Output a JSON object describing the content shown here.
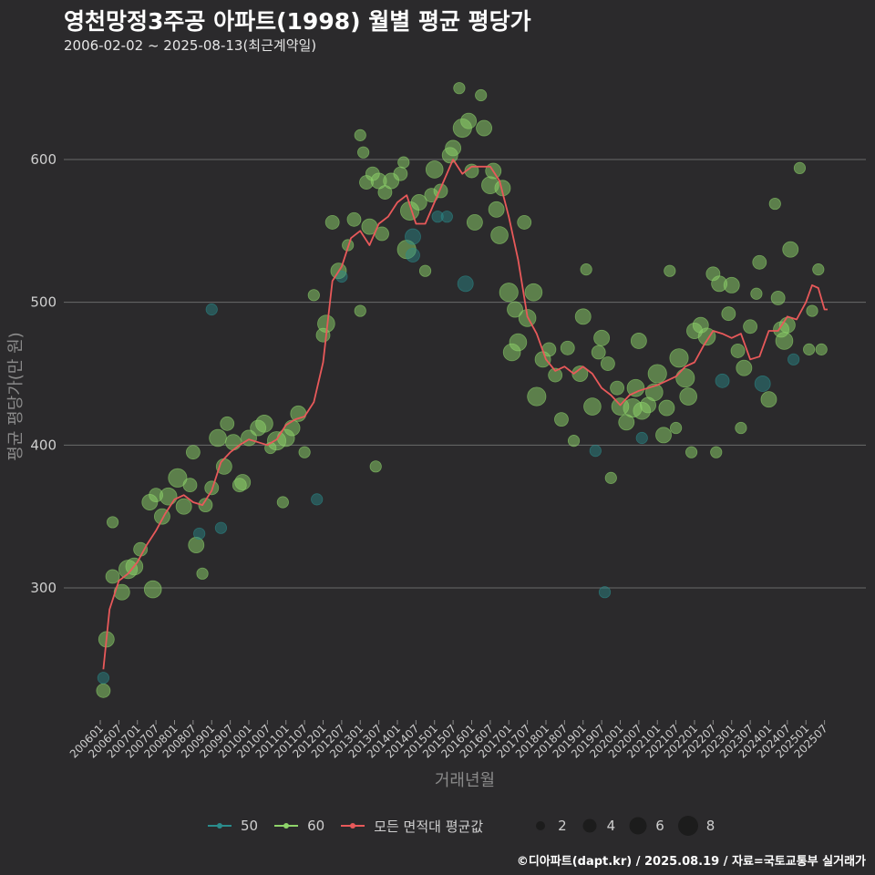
{
  "chart_data": {
    "type": "scatter",
    "title": "영천망정3주공 아파트(1998) 월별 평균 평당가",
    "subtitle": "2006-02-02 ~ 2025-08-13(최근계약일)",
    "xlabel": "거래년월",
    "ylabel": "평균 평당가(만 원)",
    "ylim": [
      205,
      660
    ],
    "yticks": [
      300,
      400,
      500,
      600
    ],
    "grid": "horizontal",
    "legend_placement": "bottom",
    "x_start": "2006-01",
    "x_end": "2025-08",
    "xticks": [
      "200601",
      "200607",
      "200701",
      "200707",
      "200801",
      "200807",
      "200901",
      "200907",
      "201001",
      "201007",
      "201101",
      "201107",
      "201201",
      "201207",
      "201301",
      "201307",
      "201401",
      "201407",
      "201501",
      "201507",
      "201601",
      "201607",
      "201701",
      "201707",
      "201801",
      "201807",
      "201901",
      "201907",
      "202001",
      "202007",
      "202101",
      "202107",
      "202201",
      "202207",
      "202301",
      "202307",
      "202401",
      "202407",
      "202501",
      "202507"
    ],
    "series": [
      {
        "name": "50",
        "kind": "points",
        "color": "#2a8c8c"
      },
      {
        "name": "60",
        "kind": "points",
        "color": "#8ed46a"
      },
      {
        "name": "모든 면적대 평균값",
        "kind": "line",
        "color": "#e8595a"
      }
    ],
    "size_legend": [
      2,
      4,
      6,
      8
    ],
    "average_line": {
      "x": [
        "2006-02",
        "2006-04",
        "2006-07",
        "2006-10",
        "2007-01",
        "2007-04",
        "2007-07",
        "2007-10",
        "2008-01",
        "2008-04",
        "2008-07",
        "2008-10",
        "2009-01",
        "2009-04",
        "2009-07",
        "2009-10",
        "2010-01",
        "2010-04",
        "2010-07",
        "2010-10",
        "2011-01",
        "2011-04",
        "2011-07",
        "2011-10",
        "2012-01",
        "2012-04",
        "2012-07",
        "2012-10",
        "2013-01",
        "2013-04",
        "2013-07",
        "2013-10",
        "2014-01",
        "2014-04",
        "2014-07",
        "2014-10",
        "2015-01",
        "2015-04",
        "2015-07",
        "2015-10",
        "2016-01",
        "2016-04",
        "2016-07",
        "2016-10",
        "2017-01",
        "2017-04",
        "2017-07",
        "2017-10",
        "2018-01",
        "2018-04",
        "2018-07",
        "2018-10",
        "2019-01",
        "2019-04",
        "2019-07",
        "2019-10",
        "2020-01",
        "2020-04",
        "2020-07",
        "2020-10",
        "2021-01",
        "2021-04",
        "2021-07",
        "2021-10",
        "2022-01",
        "2022-04",
        "2022-07",
        "2022-10",
        "2023-01",
        "2023-04",
        "2023-07",
        "2023-10",
        "2024-01",
        "2024-04",
        "2024-07",
        "2024-10",
        "2025-01",
        "2025-03",
        "2025-05",
        "2025-07",
        "2025-08"
      ],
      "y": [
        243,
        285,
        305,
        310,
        318,
        330,
        340,
        352,
        362,
        365,
        360,
        358,
        368,
        388,
        395,
        400,
        404,
        402,
        400,
        404,
        414,
        418,
        420,
        430,
        458,
        515,
        525,
        545,
        550,
        540,
        555,
        560,
        570,
        575,
        555,
        555,
        570,
        585,
        600,
        590,
        595,
        595,
        595,
        585,
        560,
        530,
        490,
        478,
        460,
        452,
        455,
        450,
        455,
        450,
        440,
        435,
        428,
        435,
        438,
        440,
        442,
        445,
        448,
        455,
        458,
        470,
        480,
        478,
        475,
        478,
        460,
        462,
        480,
        480,
        490,
        488,
        500,
        512,
        510,
        495,
        495
      ]
    },
    "points": [
      {
        "x": "2006-02",
        "y": 228,
        "n": 2,
        "s": "60"
      },
      {
        "x": "2006-02",
        "y": 237,
        "n": 1,
        "s": "50"
      },
      {
        "x": "2006-03",
        "y": 264,
        "n": 3,
        "s": "60"
      },
      {
        "x": "2006-05",
        "y": 308,
        "n": 2,
        "s": "60"
      },
      {
        "x": "2006-05",
        "y": 346,
        "n": 1,
        "s": "60"
      },
      {
        "x": "2006-08",
        "y": 297,
        "n": 3,
        "s": "60"
      },
      {
        "x": "2006-10",
        "y": 313,
        "n": 5,
        "s": "60"
      },
      {
        "x": "2006-12",
        "y": 315,
        "n": 4,
        "s": "60"
      },
      {
        "x": "2007-02",
        "y": 327,
        "n": 2,
        "s": "60"
      },
      {
        "x": "2007-05",
        "y": 360,
        "n": 3,
        "s": "60"
      },
      {
        "x": "2007-06",
        "y": 299,
        "n": 4,
        "s": "60"
      },
      {
        "x": "2007-07",
        "y": 365,
        "n": 2,
        "s": "60"
      },
      {
        "x": "2007-09",
        "y": 350,
        "n": 3,
        "s": "60"
      },
      {
        "x": "2007-11",
        "y": 364,
        "n": 4,
        "s": "60"
      },
      {
        "x": "2008-02",
        "y": 377,
        "n": 5,
        "s": "60"
      },
      {
        "x": "2008-04",
        "y": 357,
        "n": 3,
        "s": "60"
      },
      {
        "x": "2008-06",
        "y": 372,
        "n": 2,
        "s": "60"
      },
      {
        "x": "2008-07",
        "y": 395,
        "n": 2,
        "s": "60"
      },
      {
        "x": "2008-08",
        "y": 330,
        "n": 3,
        "s": "60"
      },
      {
        "x": "2008-09",
        "y": 338,
        "n": 1,
        "s": "50"
      },
      {
        "x": "2008-10",
        "y": 310,
        "n": 1,
        "s": "60"
      },
      {
        "x": "2008-11",
        "y": 358,
        "n": 2,
        "s": "60"
      },
      {
        "x": "2009-01",
        "y": 495,
        "n": 1,
        "s": "50"
      },
      {
        "x": "2009-01",
        "y": 370,
        "n": 2,
        "s": "60"
      },
      {
        "x": "2009-03",
        "y": 405,
        "n": 4,
        "s": "60"
      },
      {
        "x": "2009-04",
        "y": 342,
        "n": 1,
        "s": "50"
      },
      {
        "x": "2009-05",
        "y": 385,
        "n": 3,
        "s": "60"
      },
      {
        "x": "2009-06",
        "y": 415,
        "n": 2,
        "s": "60"
      },
      {
        "x": "2009-08",
        "y": 402,
        "n": 3,
        "s": "60"
      },
      {
        "x": "2009-10",
        "y": 372,
        "n": 2,
        "s": "60"
      },
      {
        "x": "2009-11",
        "y": 374,
        "n": 3,
        "s": "60"
      },
      {
        "x": "2010-01",
        "y": 405,
        "n": 3,
        "s": "60"
      },
      {
        "x": "2010-04",
        "y": 412,
        "n": 3,
        "s": "60"
      },
      {
        "x": "2010-06",
        "y": 415,
        "n": 4,
        "s": "60"
      },
      {
        "x": "2010-08",
        "y": 398,
        "n": 1,
        "s": "60"
      },
      {
        "x": "2010-10",
        "y": 403,
        "n": 5,
        "s": "60"
      },
      {
        "x": "2010-12",
        "y": 360,
        "n": 1,
        "s": "60"
      },
      {
        "x": "2011-01",
        "y": 405,
        "n": 4,
        "s": "60"
      },
      {
        "x": "2011-03",
        "y": 412,
        "n": 3,
        "s": "60"
      },
      {
        "x": "2011-05",
        "y": 422,
        "n": 3,
        "s": "60"
      },
      {
        "x": "2011-07",
        "y": 395,
        "n": 1,
        "s": "60"
      },
      {
        "x": "2011-10",
        "y": 505,
        "n": 1,
        "s": "60"
      },
      {
        "x": "2011-11",
        "y": 362,
        "n": 1,
        "s": "50"
      },
      {
        "x": "2012-01",
        "y": 477,
        "n": 2,
        "s": "60"
      },
      {
        "x": "2012-02",
        "y": 485,
        "n": 4,
        "s": "60"
      },
      {
        "x": "2012-04",
        "y": 556,
        "n": 2,
        "s": "60"
      },
      {
        "x": "2012-06",
        "y": 522,
        "n": 3,
        "s": "60"
      },
      {
        "x": "2012-07",
        "y": 518,
        "n": 1,
        "s": "50"
      },
      {
        "x": "2012-09",
        "y": 540,
        "n": 1,
        "s": "60"
      },
      {
        "x": "2012-11",
        "y": 558,
        "n": 2,
        "s": "60"
      },
      {
        "x": "2013-01",
        "y": 617,
        "n": 1,
        "s": "60"
      },
      {
        "x": "2013-01",
        "y": 494,
        "n": 1,
        "s": "60"
      },
      {
        "x": "2013-02",
        "y": 605,
        "n": 1,
        "s": "60"
      },
      {
        "x": "2013-03",
        "y": 584,
        "n": 2,
        "s": "60"
      },
      {
        "x": "2013-04",
        "y": 553,
        "n": 3,
        "s": "60"
      },
      {
        "x": "2013-05",
        "y": 590,
        "n": 2,
        "s": "60"
      },
      {
        "x": "2013-06",
        "y": 385,
        "n": 1,
        "s": "60"
      },
      {
        "x": "2013-07",
        "y": 585,
        "n": 3,
        "s": "60"
      },
      {
        "x": "2013-08",
        "y": 548,
        "n": 2,
        "s": "60"
      },
      {
        "x": "2013-09",
        "y": 577,
        "n": 2,
        "s": "60"
      },
      {
        "x": "2013-11",
        "y": 585,
        "n": 3,
        "s": "60"
      },
      {
        "x": "2014-02",
        "y": 590,
        "n": 2,
        "s": "60"
      },
      {
        "x": "2014-03",
        "y": 598,
        "n": 1,
        "s": "60"
      },
      {
        "x": "2014-04",
        "y": 537,
        "n": 5,
        "s": "60"
      },
      {
        "x": "2014-05",
        "y": 564,
        "n": 5,
        "s": "60"
      },
      {
        "x": "2014-06",
        "y": 546,
        "n": 3,
        "s": "50"
      },
      {
        "x": "2014-06",
        "y": 533,
        "n": 2,
        "s": "50"
      },
      {
        "x": "2014-08",
        "y": 570,
        "n": 3,
        "s": "60"
      },
      {
        "x": "2014-10",
        "y": 522,
        "n": 1,
        "s": "60"
      },
      {
        "x": "2014-12",
        "y": 575,
        "n": 2,
        "s": "60"
      },
      {
        "x": "2015-01",
        "y": 593,
        "n": 4,
        "s": "60"
      },
      {
        "x": "2015-02",
        "y": 560,
        "n": 1,
        "s": "50"
      },
      {
        "x": "2015-03",
        "y": 578,
        "n": 2,
        "s": "60"
      },
      {
        "x": "2015-05",
        "y": 560,
        "n": 1,
        "s": "50"
      },
      {
        "x": "2015-06",
        "y": 603,
        "n": 3,
        "s": "60"
      },
      {
        "x": "2015-07",
        "y": 608,
        "n": 3,
        "s": "60"
      },
      {
        "x": "2015-09",
        "y": 650,
        "n": 1,
        "s": "60"
      },
      {
        "x": "2015-10",
        "y": 622,
        "n": 5,
        "s": "60"
      },
      {
        "x": "2015-11",
        "y": 513,
        "n": 3,
        "s": "50"
      },
      {
        "x": "2015-12",
        "y": 627,
        "n": 3,
        "s": "60"
      },
      {
        "x": "2016-01",
        "y": 592,
        "n": 2,
        "s": "60"
      },
      {
        "x": "2016-02",
        "y": 556,
        "n": 3,
        "s": "60"
      },
      {
        "x": "2016-04",
        "y": 645,
        "n": 1,
        "s": "60"
      },
      {
        "x": "2016-05",
        "y": 622,
        "n": 3,
        "s": "60"
      },
      {
        "x": "2016-07",
        "y": 582,
        "n": 4,
        "s": "60"
      },
      {
        "x": "2016-08",
        "y": 592,
        "n": 3,
        "s": "60"
      },
      {
        "x": "2016-09",
        "y": 565,
        "n": 3,
        "s": "60"
      },
      {
        "x": "2016-10",
        "y": 547,
        "n": 4,
        "s": "60"
      },
      {
        "x": "2016-11",
        "y": 580,
        "n": 3,
        "s": "60"
      },
      {
        "x": "2017-01",
        "y": 507,
        "n": 5,
        "s": "60"
      },
      {
        "x": "2017-02",
        "y": 465,
        "n": 4,
        "s": "60"
      },
      {
        "x": "2017-03",
        "y": 495,
        "n": 3,
        "s": "60"
      },
      {
        "x": "2017-04",
        "y": 472,
        "n": 4,
        "s": "60"
      },
      {
        "x": "2017-06",
        "y": 556,
        "n": 2,
        "s": "60"
      },
      {
        "x": "2017-07",
        "y": 489,
        "n": 4,
        "s": "60"
      },
      {
        "x": "2017-09",
        "y": 507,
        "n": 4,
        "s": "60"
      },
      {
        "x": "2017-10",
        "y": 434,
        "n": 5,
        "s": "60"
      },
      {
        "x": "2017-12",
        "y": 460,
        "n": 3,
        "s": "60"
      },
      {
        "x": "2018-02",
        "y": 467,
        "n": 2,
        "s": "60"
      },
      {
        "x": "2018-04",
        "y": 449,
        "n": 2,
        "s": "60"
      },
      {
        "x": "2018-06",
        "y": 418,
        "n": 2,
        "s": "60"
      },
      {
        "x": "2018-08",
        "y": 468,
        "n": 2,
        "s": "60"
      },
      {
        "x": "2018-10",
        "y": 403,
        "n": 1,
        "s": "60"
      },
      {
        "x": "2018-12",
        "y": 450,
        "n": 3,
        "s": "60"
      },
      {
        "x": "2019-01",
        "y": 490,
        "n": 3,
        "s": "60"
      },
      {
        "x": "2019-02",
        "y": 523,
        "n": 1,
        "s": "60"
      },
      {
        "x": "2019-04",
        "y": 427,
        "n": 4,
        "s": "60"
      },
      {
        "x": "2019-05",
        "y": 396,
        "n": 1,
        "s": "50"
      },
      {
        "x": "2019-06",
        "y": 465,
        "n": 2,
        "s": "60"
      },
      {
        "x": "2019-07",
        "y": 475,
        "n": 3,
        "s": "60"
      },
      {
        "x": "2019-08",
        "y": 297,
        "n": 1,
        "s": "50"
      },
      {
        "x": "2019-09",
        "y": 457,
        "n": 2,
        "s": "60"
      },
      {
        "x": "2019-10",
        "y": 377,
        "n": 1,
        "s": "60"
      },
      {
        "x": "2019-12",
        "y": 440,
        "n": 2,
        "s": "60"
      },
      {
        "x": "2020-01",
        "y": 427,
        "n": 4,
        "s": "60"
      },
      {
        "x": "2020-03",
        "y": 416,
        "n": 3,
        "s": "60"
      },
      {
        "x": "2020-05",
        "y": 426,
        "n": 5,
        "s": "60"
      },
      {
        "x": "2020-06",
        "y": 440,
        "n": 4,
        "s": "60"
      },
      {
        "x": "2020-07",
        "y": 473,
        "n": 3,
        "s": "60"
      },
      {
        "x": "2020-08",
        "y": 424,
        "n": 4,
        "s": "60"
      },
      {
        "x": "2020-08",
        "y": 405,
        "n": 1,
        "s": "50"
      },
      {
        "x": "2020-10",
        "y": 428,
        "n": 3,
        "s": "60"
      },
      {
        "x": "2020-12",
        "y": 437,
        "n": 4,
        "s": "60"
      },
      {
        "x": "2021-01",
        "y": 450,
        "n": 5,
        "s": "60"
      },
      {
        "x": "2021-03",
        "y": 407,
        "n": 3,
        "s": "60"
      },
      {
        "x": "2021-04",
        "y": 426,
        "n": 3,
        "s": "60"
      },
      {
        "x": "2021-05",
        "y": 522,
        "n": 1,
        "s": "60"
      },
      {
        "x": "2021-07",
        "y": 412,
        "n": 1,
        "s": "60"
      },
      {
        "x": "2021-08",
        "y": 461,
        "n": 5,
        "s": "60"
      },
      {
        "x": "2021-10",
        "y": 447,
        "n": 5,
        "s": "60"
      },
      {
        "x": "2021-11",
        "y": 434,
        "n": 4,
        "s": "60"
      },
      {
        "x": "2021-12",
        "y": 395,
        "n": 1,
        "s": "60"
      },
      {
        "x": "2022-01",
        "y": 480,
        "n": 3,
        "s": "60"
      },
      {
        "x": "2022-03",
        "y": 484,
        "n": 3,
        "s": "60"
      },
      {
        "x": "2022-05",
        "y": 476,
        "n": 4,
        "s": "60"
      },
      {
        "x": "2022-07",
        "y": 520,
        "n": 2,
        "s": "60"
      },
      {
        "x": "2022-08",
        "y": 395,
        "n": 1,
        "s": "60"
      },
      {
        "x": "2022-09",
        "y": 513,
        "n": 3,
        "s": "60"
      },
      {
        "x": "2022-10",
        "y": 445,
        "n": 2,
        "s": "50"
      },
      {
        "x": "2022-12",
        "y": 492,
        "n": 2,
        "s": "60"
      },
      {
        "x": "2023-01",
        "y": 512,
        "n": 3,
        "s": "60"
      },
      {
        "x": "2023-03",
        "y": 466,
        "n": 2,
        "s": "60"
      },
      {
        "x": "2023-04",
        "y": 412,
        "n": 1,
        "s": "60"
      },
      {
        "x": "2023-05",
        "y": 454,
        "n": 3,
        "s": "60"
      },
      {
        "x": "2023-07",
        "y": 483,
        "n": 2,
        "s": "60"
      },
      {
        "x": "2023-09",
        "y": 506,
        "n": 1,
        "s": "60"
      },
      {
        "x": "2023-10",
        "y": 528,
        "n": 2,
        "s": "60"
      },
      {
        "x": "2023-11",
        "y": 443,
        "n": 3,
        "s": "50"
      },
      {
        "x": "2024-01",
        "y": 432,
        "n": 3,
        "s": "60"
      },
      {
        "x": "2024-03",
        "y": 569,
        "n": 1,
        "s": "60"
      },
      {
        "x": "2024-04",
        "y": 503,
        "n": 2,
        "s": "60"
      },
      {
        "x": "2024-05",
        "y": 481,
        "n": 3,
        "s": "60"
      },
      {
        "x": "2024-06",
        "y": 473,
        "n": 4,
        "s": "60"
      },
      {
        "x": "2024-07",
        "y": 484,
        "n": 3,
        "s": "60"
      },
      {
        "x": "2024-08",
        "y": 537,
        "n": 3,
        "s": "60"
      },
      {
        "x": "2024-09",
        "y": 460,
        "n": 1,
        "s": "50"
      },
      {
        "x": "2024-11",
        "y": 594,
        "n": 1,
        "s": "60"
      },
      {
        "x": "2025-02",
        "y": 467,
        "n": 1,
        "s": "60"
      },
      {
        "x": "2025-03",
        "y": 494,
        "n": 1,
        "s": "60"
      },
      {
        "x": "2025-05",
        "y": 523,
        "n": 1,
        "s": "60"
      },
      {
        "x": "2025-06",
        "y": 467,
        "n": 1,
        "s": "60"
      }
    ]
  },
  "caption": "©디아파트(dapt.kr) / 2025.08.19 / 자료=국토교통부 실거래가"
}
